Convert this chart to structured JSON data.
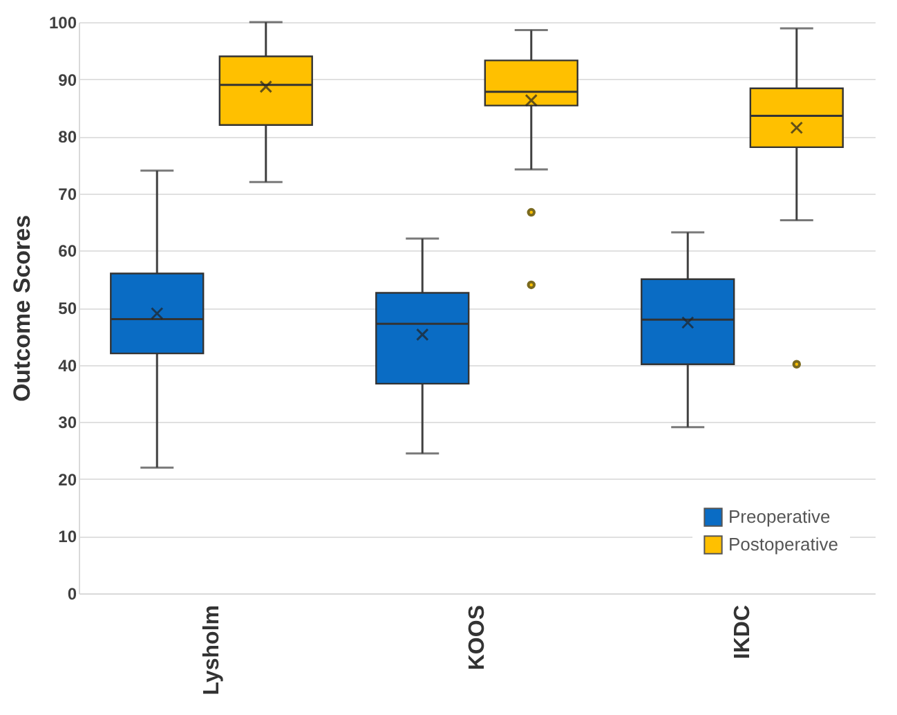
{
  "chart_data": {
    "type": "box",
    "ylabel": "Outcome Scores",
    "categories": [
      "Lysholm",
      "KOOS",
      "IKDC"
    ],
    "ylim": [
      0,
      100
    ],
    "yticks": [
      0,
      10,
      20,
      30,
      40,
      50,
      60,
      70,
      80,
      90,
      100
    ],
    "grid": "y",
    "legend": "bottom right",
    "series": [
      {
        "name": "Preoperative",
        "color": "#0a6cc4",
        "boxes": [
          {
            "low": 22,
            "q1": 42,
            "median": 48,
            "q3": 56,
            "high": 74,
            "mean": 49
          },
          {
            "low": 24.5,
            "q1": 36.7,
            "median": 47.2,
            "q3": 52.6,
            "high": 62.1,
            "mean": 45.3
          },
          {
            "low": 29.1,
            "q1": 40.1,
            "median": 47.9,
            "q3": 55,
            "high": 63.2,
            "mean": 47.4
          }
        ]
      },
      {
        "name": "Postoperative",
        "color": "#ffc000",
        "boxes": [
          {
            "low": 72,
            "q1": 82,
            "median": 89,
            "q3": 94,
            "high": 100,
            "mean": 88.7
          },
          {
            "low": 74.2,
            "q1": 85.4,
            "median": 87.8,
            "q3": 93.3,
            "high": 98.6,
            "mean": 86.3,
            "outliers": [
              66.7,
              54
            ]
          },
          {
            "low": 65.3,
            "q1": 78.1,
            "median": 83.6,
            "q3": 88.4,
            "high": 98.9,
            "mean": 81.5,
            "outliers": [
              40.1
            ]
          }
        ]
      }
    ]
  }
}
